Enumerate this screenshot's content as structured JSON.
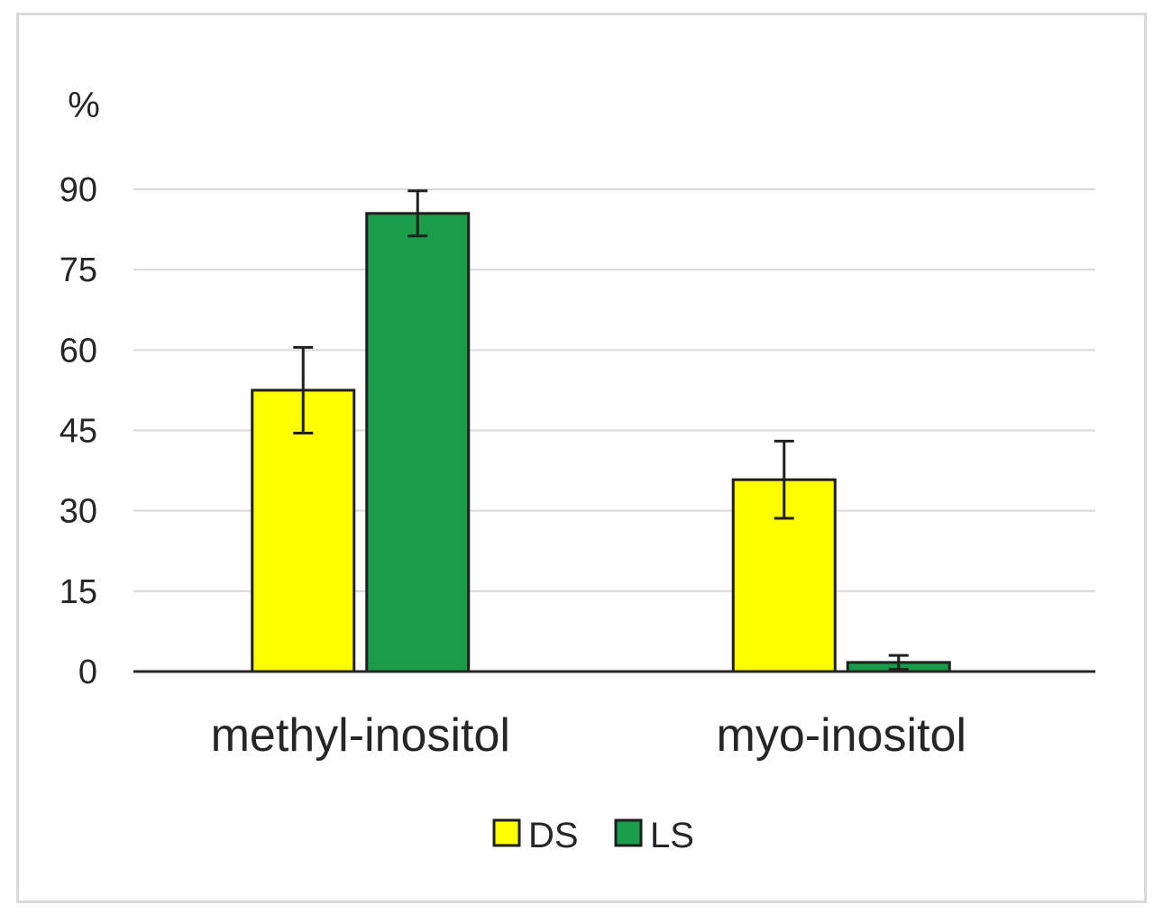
{
  "chart_data": {
    "type": "bar",
    "unit_label": "%",
    "categories": [
      "methyl-inositol",
      "myo-inositol"
    ],
    "series": [
      {
        "name": "DS",
        "color": "#ffff00",
        "values": [
          52.5,
          35.8
        ],
        "errors": [
          8.0,
          7.2
        ]
      },
      {
        "name": "LS",
        "color": "#1a9c48",
        "values": [
          85.5,
          1.7
        ],
        "errors": [
          4.2,
          1.3
        ]
      }
    ],
    "ylim": [
      0,
      90
    ],
    "yticks": [
      0,
      15,
      30,
      45,
      60,
      75,
      90
    ],
    "grid": true,
    "legend_position": "bottom-center",
    "xlabel": "",
    "ylabel": ""
  }
}
